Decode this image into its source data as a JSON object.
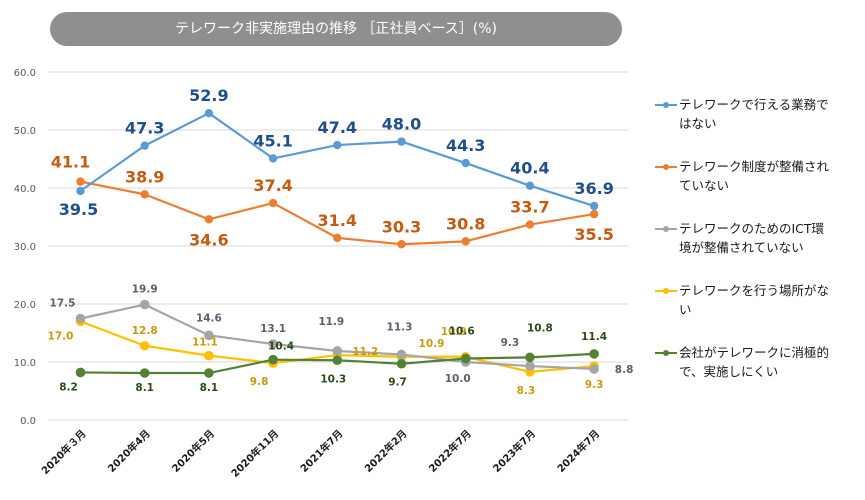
{
  "title": "テレワーク非実施理由の推移 ［正社員ベース］(%)",
  "chart_data": {
    "type": "line",
    "title": "テレワーク非実施理由の推移 ［正社員ベース］(%)",
    "xlabel": "",
    "ylabel": "",
    "ylim": [
      0,
      60
    ],
    "yticks": [
      "0.0",
      "10.0",
      "20.0",
      "30.0",
      "40.0",
      "50.0",
      "60.0"
    ],
    "ytick_values": [
      0,
      10,
      20,
      30,
      40,
      50,
      60
    ],
    "grid": true,
    "legend_position": "right",
    "categories": [
      "2020年３月",
      "2020年4月",
      "2020年5月",
      "2020年11月",
      "2021年7月",
      "2022年2月",
      "2022年7月",
      "2023年7月",
      "2024年7月"
    ],
    "series": [
      {
        "name": "テレワークで行える業務ではない",
        "color": "#5b9bd5",
        "label_color": "#1f4e8c",
        "label_size": "big",
        "values": [
          39.5,
          47.3,
          52.9,
          45.1,
          47.4,
          48.0,
          44.3,
          40.4,
          36.9
        ],
        "labels": [
          "39.5",
          "47.3",
          "52.9",
          "45.1",
          "47.4",
          "48.0",
          "44.3",
          "40.4",
          "36.9"
        ]
      },
      {
        "name": "テレワーク制度が整備されていない",
        "color": "#ed7d31",
        "label_color": "#c55a11",
        "label_size": "big",
        "values": [
          41.1,
          38.9,
          34.6,
          37.4,
          31.4,
          30.3,
          30.8,
          33.7,
          35.5
        ],
        "labels": [
          "41.1",
          "38.9",
          "34.6",
          "37.4",
          "31.4",
          "30.3",
          "30.8",
          "33.7",
          "35.5"
        ]
      },
      {
        "name": "テレワークのためのICT環境が整備されていない",
        "color": "#a5a5a5",
        "label_color": "#596070",
        "label_size": "small",
        "values": [
          17.5,
          19.9,
          14.6,
          13.1,
          11.9,
          11.3,
          10.0,
          9.3,
          8.8
        ],
        "labels": [
          "17.5",
          "19.9",
          "14.6",
          "13.1",
          "11.9",
          "11.3",
          "10.0",
          "9.3",
          "8.8"
        ]
      },
      {
        "name": "テレワークを行う場所がない",
        "color": "#ffc000",
        "label_color": "#c99a0a",
        "label_size": "small",
        "values": [
          17.0,
          12.8,
          11.1,
          9.8,
          11.2,
          10.9,
          10.9,
          8.3,
          9.3
        ],
        "labels": [
          "17.0",
          "12.8",
          "11.1",
          "9.8",
          "11.2",
          "10.9",
          "10.9",
          "8.3",
          "9.3"
        ]
      },
      {
        "name": "会社がテレワークに消極的で、実施しにくい",
        "color": "#548235",
        "label_color": "#2d4a1a",
        "label_size": "small",
        "values": [
          8.2,
          8.1,
          8.1,
          10.4,
          10.3,
          9.7,
          10.6,
          10.8,
          11.4
        ],
        "labels": [
          "8.2",
          "8.1",
          "8.1",
          "10.4",
          "10.3",
          "9.7",
          "10.6",
          "10.8",
          "11.4"
        ]
      }
    ]
  },
  "legend": {
    "items": [
      {
        "line1": "テレワークで行える業務で",
        "line2": "はない",
        "color": "#5b9bd5"
      },
      {
        "line1": "テレワーク制度が整備され",
        "line2": "ていない",
        "color": "#ed7d31"
      },
      {
        "line1": "テレワークのためのICT環",
        "line2": "境が整備されていない",
        "color": "#a5a5a5"
      },
      {
        "line1": "テレワークを行う場所がな",
        "line2": "い",
        "color": "#ffc000"
      },
      {
        "line1": "会社がテレワークに消極的",
        "line2": "で、実施しにくい",
        "color": "#548235"
      }
    ]
  }
}
